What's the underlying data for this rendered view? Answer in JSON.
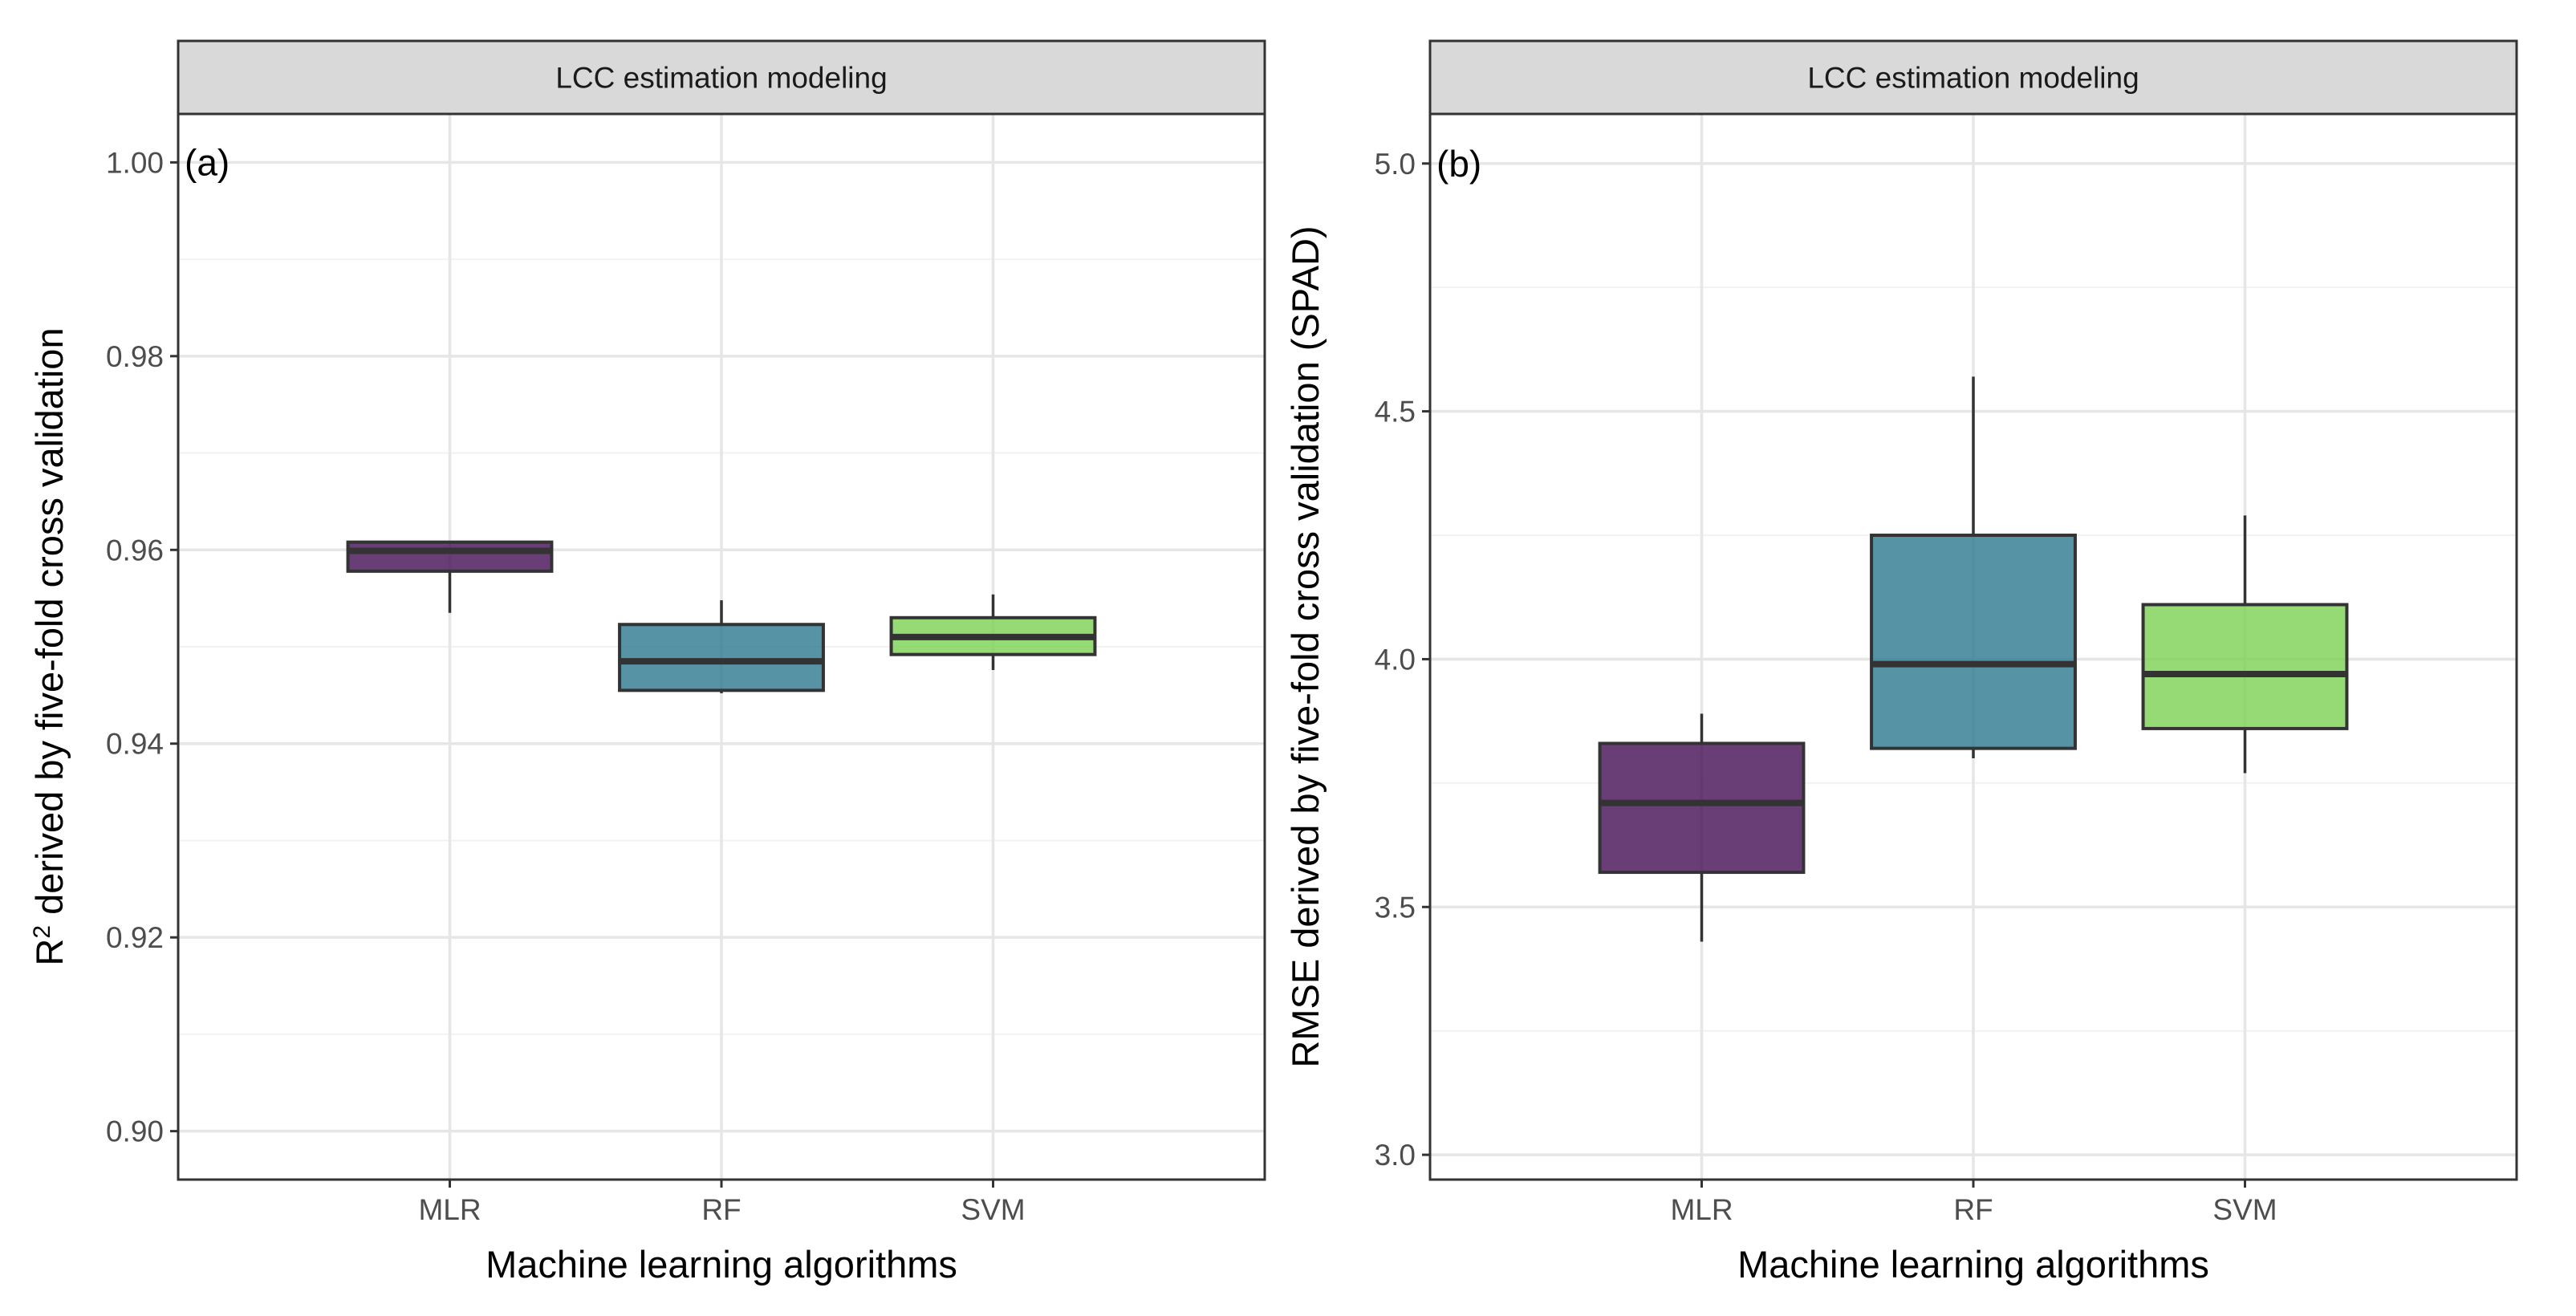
{
  "chart_data": [
    {
      "type": "box",
      "strip_label": "LCC estimation modeling",
      "panel_tag": "(a)",
      "xlabel": "Machine learning algorithms",
      "ylabel_main": "R",
      "ylabel_sup": "2",
      "ylabel_rest": " derived by five-fold cross validation",
      "ylim": [
        0.895,
        1.005
      ],
      "yticks": [
        0.9,
        0.92,
        0.94,
        0.96,
        0.98,
        1.0
      ],
      "ytick_labels": [
        "0.90",
        "0.92",
        "0.94",
        "0.96",
        "0.98",
        "1.00"
      ],
      "yminor": [
        0.91,
        0.93,
        0.95,
        0.97,
        0.99
      ],
      "grid": true,
      "categories": [
        "MLR",
        "RF",
        "SVM"
      ],
      "boxes": [
        {
          "category": "MLR",
          "min": 0.9535,
          "q1": 0.9578,
          "median": 0.9599,
          "q3": 0.9608,
          "max": 0.9608,
          "color": "#440d54"
        },
        {
          "category": "RF",
          "min": 0.9452,
          "q1": 0.9455,
          "median": 0.9485,
          "q3": 0.9523,
          "max": 0.9548,
          "color": "#2a788e"
        },
        {
          "category": "SVM",
          "min": 0.9476,
          "q1": 0.9492,
          "median": 0.951,
          "q3": 0.953,
          "max": 0.9554,
          "color": "#7ad151"
        }
      ]
    },
    {
      "type": "box",
      "strip_label": "LCC estimation modeling",
      "panel_tag": "(b)",
      "xlabel": "Machine learning algorithms",
      "ylabel_main": "RMSE derived by five-fold cross validation (SPAD)",
      "ylabel_sup": "",
      "ylabel_rest": "",
      "ylim": [
        2.95,
        5.1
      ],
      "yticks": [
        3.0,
        3.5,
        4.0,
        4.5,
        5.0
      ],
      "ytick_labels": [
        "3.0",
        "3.5",
        "4.0",
        "4.5",
        "5.0"
      ],
      "yminor": [
        3.25,
        3.75,
        4.25,
        4.75
      ],
      "grid": true,
      "categories": [
        "MLR",
        "RF",
        "SVM"
      ],
      "boxes": [
        {
          "category": "MLR",
          "min": 3.43,
          "q1": 3.57,
          "median": 3.71,
          "q3": 3.83,
          "max": 3.89,
          "color": "#440d54"
        },
        {
          "category": "RF",
          "min": 3.8,
          "q1": 3.82,
          "median": 3.99,
          "q3": 4.25,
          "max": 4.57,
          "color": "#2a788e"
        },
        {
          "category": "SVM",
          "min": 3.77,
          "q1": 3.86,
          "median": 3.97,
          "q3": 4.11,
          "max": 4.29,
          "color": "#7ad151"
        }
      ]
    }
  ]
}
